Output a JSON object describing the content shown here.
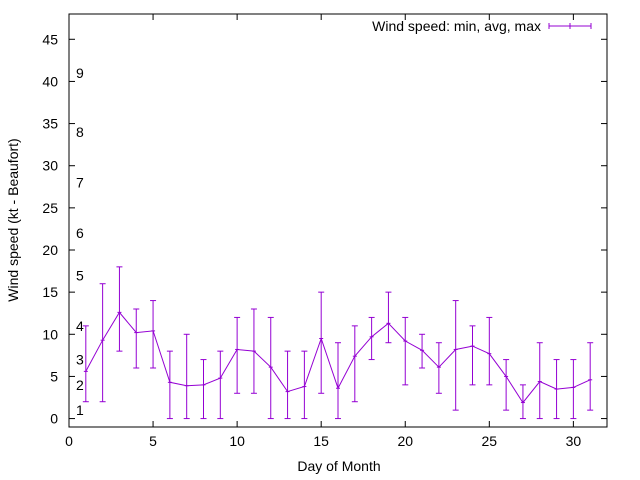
{
  "chart_data": {
    "type": "line",
    "xlabel": "Day of Month",
    "ylabel": "Wind speed (kt - Beaufort)",
    "xlim": [
      0,
      32
    ],
    "ylim": [
      -1,
      48
    ],
    "xticks": [
      0,
      5,
      10,
      15,
      20,
      25,
      30
    ],
    "yticks": [
      0,
      5,
      10,
      15,
      20,
      25,
      30,
      35,
      40,
      45
    ],
    "grid": false,
    "legend_position": "top-right",
    "beaufort_labels": [
      {
        "label": "1",
        "y": 1
      },
      {
        "label": "2",
        "y": 4
      },
      {
        "label": "3",
        "y": 7
      },
      {
        "label": "4",
        "y": 11
      },
      {
        "label": "5",
        "y": 17
      },
      {
        "label": "6",
        "y": 22
      },
      {
        "label": "7",
        "y": 28
      },
      {
        "label": "8",
        "y": 34
      },
      {
        "label": "9",
        "y": 41
      }
    ],
    "series": [
      {
        "name": "Wind speed: min, avg, max",
        "color": "#9400d3",
        "x": [
          1,
          2,
          3,
          4,
          5,
          6,
          7,
          8,
          9,
          10,
          11,
          12,
          13,
          14,
          15,
          16,
          17,
          18,
          19,
          20,
          21,
          22,
          23,
          24,
          25,
          26,
          27,
          28,
          29,
          30,
          31
        ],
        "avg": [
          5.6,
          9.3,
          12.6,
          10.2,
          10.4,
          4.3,
          3.9,
          4.0,
          4.8,
          8.2,
          8.0,
          6.1,
          3.2,
          3.8,
          9.5,
          3.6,
          7.4,
          9.7,
          11.3,
          9.2,
          8.1,
          6.1,
          8.2,
          8.6,
          7.7,
          5.0,
          1.9,
          4.4,
          3.5,
          3.7,
          4.6
        ],
        "min": [
          2,
          2,
          8,
          6,
          6,
          0,
          0,
          0,
          0,
          3,
          3,
          0,
          0,
          0,
          3,
          0,
          2,
          7,
          9,
          4,
          6,
          3,
          1,
          4,
          4,
          1,
          0,
          0,
          0,
          0,
          1
        ],
        "max": [
          11,
          16,
          18,
          13,
          14,
          8,
          10,
          7,
          8,
          12,
          13,
          12,
          8,
          8,
          15,
          9,
          11,
          12,
          15,
          12,
          10,
          9,
          14,
          11,
          12,
          7,
          4,
          9,
          7,
          7,
          9
        ]
      }
    ]
  }
}
